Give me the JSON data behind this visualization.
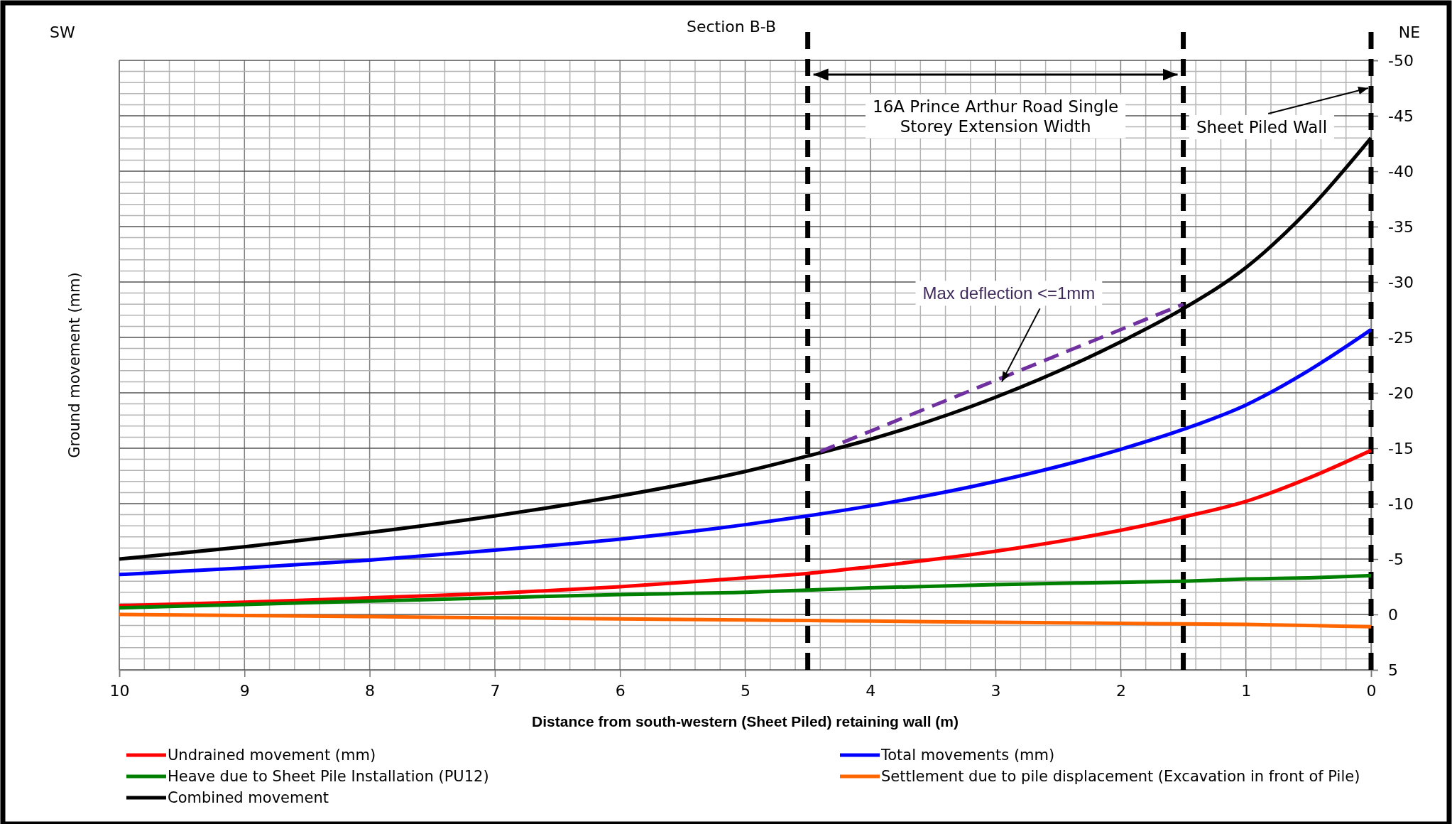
{
  "chart_data": {
    "type": "line",
    "title": "Section B-B",
    "xlabel": "Distance from south-western (Sheet Piled) retaining wall (m)",
    "ylabel": "Ground movement (mm)",
    "x": [
      10,
      9,
      8,
      7,
      6,
      5,
      4.5,
      4,
      3,
      2,
      1.5,
      1,
      0.5,
      0
    ],
    "series": [
      {
        "name": "Undrained movement (mm)",
        "color": "#ff0000",
        "values": [
          -0.8,
          -1.1,
          -1.5,
          -1.9,
          -2.5,
          -3.3,
          -3.7,
          -4.3,
          -5.7,
          -7.6,
          -8.8,
          -10.2,
          -12.3,
          -14.8
        ]
      },
      {
        "name": "Total movements (mm)",
        "color": "#0000ff",
        "values": [
          -3.6,
          -4.2,
          -4.9,
          -5.8,
          -6.8,
          -8.1,
          -8.9,
          -9.8,
          -12.0,
          -14.9,
          -16.7,
          -18.9,
          -22.0,
          -25.7
        ]
      },
      {
        "name": "Heave due to Sheet Pile Installation (PU12)",
        "color": "#008000",
        "values": [
          -0.6,
          -0.9,
          -1.2,
          -1.5,
          -1.8,
          -2.0,
          -2.2,
          -2.4,
          -2.7,
          -2.9,
          -3.0,
          -3.2,
          -3.3,
          -3.5
        ]
      },
      {
        "name": "Settlement due to pile displacement (Excavation in front of Pile)",
        "color": "#ff6600",
        "values": [
          0.0,
          0.1,
          0.2,
          0.3,
          0.4,
          0.5,
          0.55,
          0.6,
          0.7,
          0.8,
          0.85,
          0.9,
          1.0,
          1.1
        ]
      },
      {
        "name": "Combined movement",
        "color": "#000000",
        "values": [
          -5.0,
          -6.1,
          -7.4,
          -8.9,
          -10.7,
          -12.9,
          -14.3,
          -15.8,
          -19.6,
          -24.6,
          -27.6,
          -31.3,
          -36.5,
          -43.0
        ]
      },
      {
        "color": "#7030a0",
        "line_style": "dashed",
        "x": [
          4.4,
          1.5
        ],
        "values": [
          -14.7,
          -28.0
        ]
      }
    ],
    "xlim": [
      10,
      0
    ],
    "xticks": [
      10,
      9,
      8,
      7,
      6,
      5,
      4,
      3,
      2,
      1,
      0
    ],
    "ylim": [
      5,
      -50
    ],
    "yticks": [
      -50,
      -45,
      -40,
      -35,
      -30,
      -25,
      -20,
      -15,
      -10,
      -5,
      0,
      5
    ],
    "grid": true,
    "legend": "bottom",
    "line_style": "solid",
    "marker": "none",
    "ref_lines": [
      {
        "axis": "x",
        "value": 4.5,
        "color": "#000000",
        "line_style": "dashed"
      },
      {
        "axis": "x",
        "value": 1.5,
        "color": "#000000",
        "line_style": "dashed"
      },
      {
        "axis": "x",
        "value": 0,
        "color": "#000000",
        "line_style": "dashed"
      }
    ],
    "annotations": [
      "SW",
      "NE",
      "16A Prince Arthur Road Single Storey Extension Width",
      {
        "text": "Sheet Piled Wall",
        "x": 0,
        "y": -47.5
      },
      {
        "text": "Max deflection <=1mm",
        "x": 2.95,
        "y": -21
      }
    ]
  }
}
